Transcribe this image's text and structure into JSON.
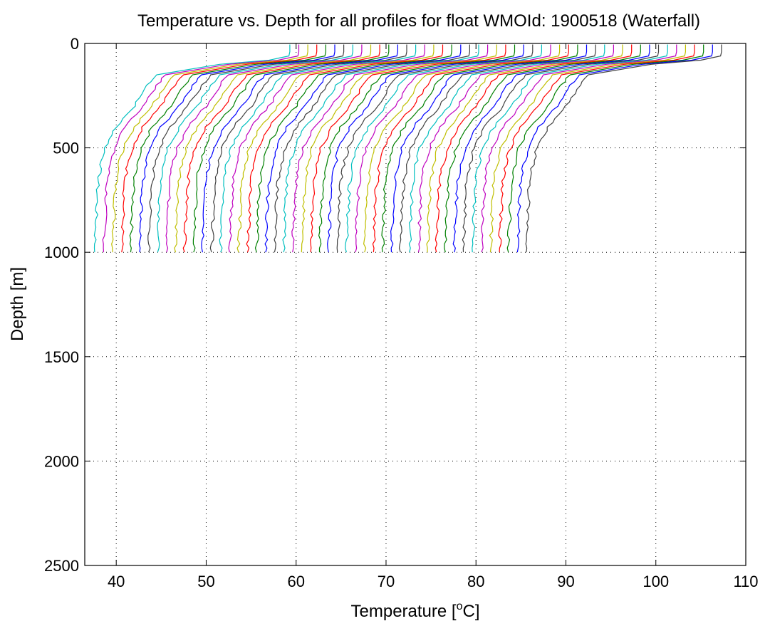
{
  "chart_data": {
    "type": "line",
    "title": "Temperature vs. Depth for all profiles for float WMOId: 1900518 (Waterfall)",
    "xlabel": "Temperature [",
    "xlabel_sup": "o",
    "xlabel_end": "C]",
    "ylabel": "Depth [m]",
    "xlim": [
      36.5,
      110
    ],
    "ylim": [
      2500,
      0
    ],
    "y_reversed": true,
    "grid": true,
    "x_ticks": [
      40,
      50,
      60,
      70,
      80,
      90,
      100,
      110
    ],
    "x_tick_labels": [
      "40",
      "50",
      "60",
      "70",
      "80",
      "90",
      "100",
      "110"
    ],
    "y_ticks": [
      0,
      500,
      1000,
      1500,
      2000,
      2500
    ],
    "y_tick_labels": [
      "0",
      "500",
      "1000",
      "1500",
      "2000",
      "2500"
    ],
    "colors": [
      "#00bfbf",
      "#bf00bf",
      "#bfbf00",
      "#ff0000",
      "#008000",
      "#0000ff",
      "#404040"
    ],
    "waterfall_offset_per_profile": 1.0,
    "depths": [
      5,
      40,
      60,
      80,
      100,
      150,
      200,
      300,
      400,
      500,
      600,
      700,
      800,
      900,
      1000
    ],
    "base_profile_temperature": [
      59.3,
      59.3,
      59.2,
      57.0,
      51.5,
      44.5,
      43.5,
      42.0,
      40.0,
      38.8,
      38.2,
      37.9,
      37.8,
      37.7,
      37.6
    ],
    "series_count": 49,
    "series_start_offsets": [
      0,
      1,
      2,
      3,
      4,
      5,
      6,
      7,
      8,
      9,
      10,
      11,
      12,
      13,
      14,
      15,
      16,
      17,
      18,
      19,
      20,
      21,
      22,
      23,
      24,
      25,
      26,
      27,
      28,
      29,
      30,
      31,
      32,
      33,
      34,
      35,
      36,
      37,
      38,
      39,
      40,
      41,
      42,
      43,
      44,
      45,
      46,
      47,
      48
    ]
  }
}
